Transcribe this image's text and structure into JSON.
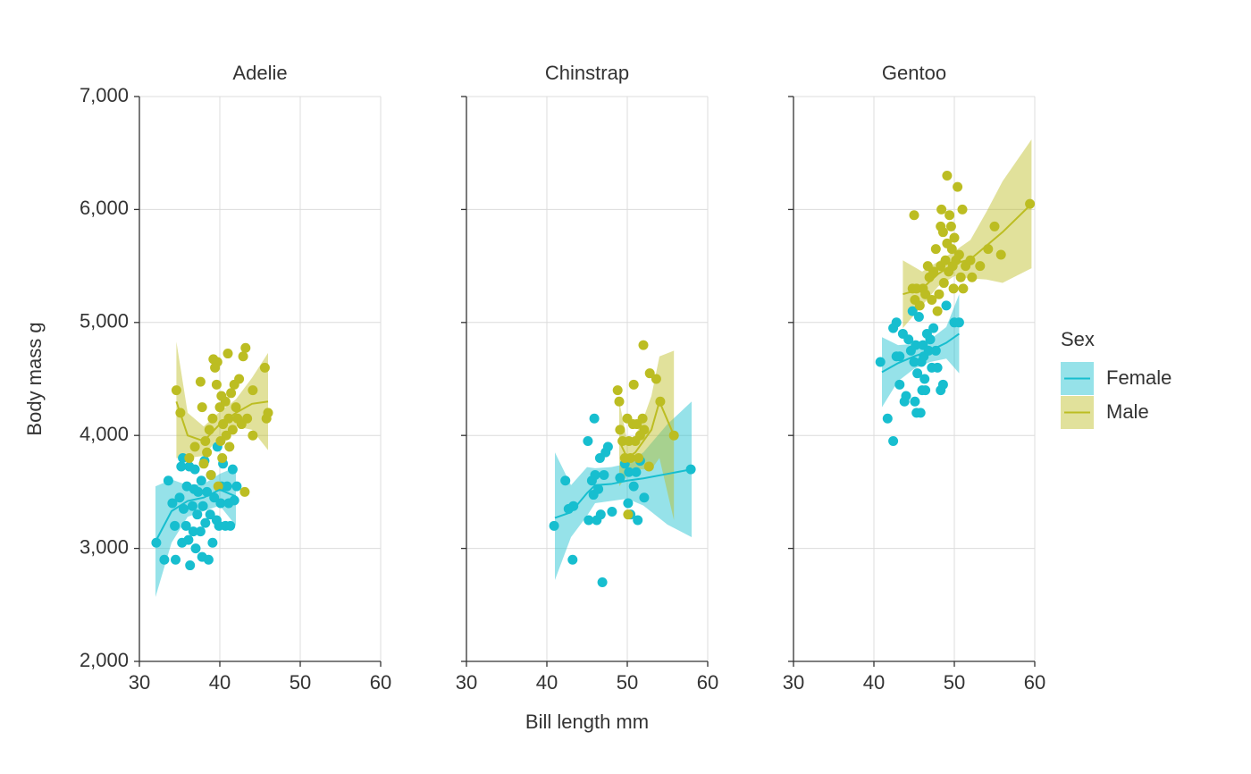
{
  "chart_data": [
    {
      "type": "scatter",
      "title": "Adelie",
      "xlim": [
        30,
        60
      ],
      "xticks": [
        30,
        40,
        50,
        60
      ],
      "ylim": [
        2000,
        7000
      ],
      "yticks": [
        {
          "value": 2000,
          "label": "2,000"
        },
        {
          "value": 3000,
          "label": "3,000"
        },
        {
          "value": 4000,
          "label": "4,000"
        },
        {
          "value": 5000,
          "label": "5,000"
        },
        {
          "value": 6000,
          "label": "6,000"
        },
        {
          "value": 7000,
          "label": "7,000"
        }
      ],
      "grid": true,
      "series": [
        {
          "name": "Female",
          "color": "#17becf",
          "x": [
            32.1,
            33.1,
            33.6,
            34.1,
            34.4,
            34.5,
            35,
            35.2,
            35.3,
            35.4,
            35.5,
            35.8,
            35.9,
            36.1,
            36.2,
            36.3,
            36.6,
            36.7,
            36.8,
            36.9,
            37,
            37.2,
            37.3,
            37.6,
            37.7,
            37.8,
            37.9,
            38.1,
            38.2,
            38.4,
            38.6,
            38.8,
            38.9,
            39.1,
            39.3,
            39.6,
            39.7,
            39.9,
            40.1,
            40.2,
            40.4,
            40.7,
            40.9,
            41.1,
            41.3,
            41.6,
            41.8,
            42.1
          ],
          "values": [
            3050,
            2900,
            3600,
            3400,
            3200,
            2900,
            3450,
            3725,
            3050,
            3800,
            3350,
            3200,
            3550,
            3075,
            3725,
            2850,
            3375,
            3150,
            3525,
            3700,
            3000,
            3300,
            3500,
            3150,
            3600,
            2925,
            3375,
            3775,
            3225,
            3500,
            2900,
            3300,
            3650,
            3050,
            3450,
            3250,
            3900,
            3200,
            3400,
            3550,
            3750,
            3200,
            3550,
            3400,
            3200,
            3700,
            3425,
            3550
          ],
          "fit": {
            "x": [
              32,
              34,
              36,
              38,
              40,
              42
            ],
            "values": [
              3060,
              3330,
              3420,
              3450,
              3520,
              3460
            ],
            "lower": [
              2570,
              3050,
              3280,
              3330,
              3380,
              3200
            ],
            "upper": [
              3550,
              3610,
              3560,
              3570,
              3660,
              3720
            ]
          }
        },
        {
          "name": "Male",
          "color": "#bcbd22",
          "x": [
            34.6,
            35.1,
            36.2,
            36.9,
            37.6,
            37.8,
            38,
            38.2,
            38.4,
            38.7,
            38.9,
            39.1,
            39.2,
            39.4,
            39.6,
            39.7,
            39.8,
            40,
            40.1,
            40.2,
            40.3,
            40.4,
            40.7,
            40.8,
            41,
            41.1,
            41.2,
            41.4,
            41.6,
            41.8,
            42,
            42.2,
            42.4,
            42.7,
            42.9,
            43.1,
            43.2,
            43.4,
            44.1,
            44.1,
            45.6,
            45.8,
            46
          ],
          "values": [
            4400,
            4200,
            3800,
            3900,
            4475,
            4250,
            3750,
            3950,
            3850,
            4050,
            3650,
            4150,
            4675,
            4600,
            4450,
            4650,
            3550,
            4250,
            3950,
            4350,
            3800,
            4100,
            4300,
            4000,
            4725,
            4150,
            3900,
            4375,
            4050,
            4450,
            4250,
            4150,
            4500,
            4100,
            4700,
            3500,
            4775,
            4150,
            4000,
            4400,
            4600,
            4150,
            4200
          ],
          "fit": {
            "x": [
              34.6,
              36,
              38,
              40,
              42,
              44,
              46
            ],
            "values": [
              4300,
              4000,
              3950,
              4100,
              4200,
              4280,
              4300
            ],
            "lower": [
              3800,
              3800,
              3820,
              3990,
              4080,
              4050,
              3870
            ],
            "upper": [
              4830,
              4200,
              4080,
              4210,
              4320,
              4510,
              4730
            ]
          }
        }
      ]
    },
    {
      "type": "scatter",
      "title": "Chinstrap",
      "xlim": [
        30,
        60
      ],
      "xticks": [
        30,
        40,
        50,
        60
      ],
      "ylim": [
        2000,
        7000
      ],
      "yticks": [
        2000,
        3000,
        4000,
        5000,
        6000,
        7000
      ],
      "grid": true,
      "series": [
        {
          "name": "Female",
          "color": "#17becf",
          "x": [
            40.9,
            42.3,
            43.2,
            43.3,
            42.7,
            45.1,
            45.2,
            45.6,
            45.8,
            45.9,
            46,
            46.2,
            46.4,
            46.6,
            46.7,
            46.9,
            47.1,
            47.3,
            47.6,
            48.1,
            49.1,
            49.7,
            50.1,
            50.2,
            50.4,
            50.8,
            51.1,
            51.3,
            51.6,
            52.1,
            57.9
          ],
          "values": [
            3200,
            3600,
            2900,
            3375,
            3350,
            3950,
            3250,
            3600,
            3475,
            4150,
            3650,
            3250,
            3525,
            3800,
            3300,
            2700,
            3650,
            3850,
            3900,
            3325,
            3625,
            3750,
            3400,
            3675,
            3300,
            3550,
            3675,
            3250,
            3775,
            3450,
            3700
          ],
          "fit": {
            "x": [
              41,
              43,
              45,
              46,
              48,
              50,
              52,
              55,
              58
            ],
            "values": [
              3270,
              3320,
              3490,
              3560,
              3570,
              3600,
              3620,
              3660,
              3700
            ],
            "lower": [
              2720,
              3100,
              3290,
              3400,
              3420,
              3440,
              3380,
              3210,
              3100
            ],
            "upper": [
              3850,
              3560,
              3720,
              3710,
              3720,
              3750,
              3850,
              4100,
              4300
            ]
          }
        },
        {
          "name": "Male",
          "color": "#bcbd22",
          "x": [
            48.8,
            49,
            49.1,
            49.4,
            49.7,
            50,
            50.1,
            50.2,
            50.4,
            50.7,
            50.8,
            51,
            51.2,
            51.4,
            51.6,
            51.9,
            52,
            52.1,
            52.7,
            52.8,
            53.6,
            54.1,
            55.8
          ],
          "values": [
            4400,
            4300,
            4050,
            3950,
            3800,
            4150,
            3300,
            3950,
            3800,
            4100,
            4450,
            3950,
            4100,
            3800,
            4000,
            4150,
            4800,
            4050,
            3725,
            4550,
            4500,
            4300,
            4000
          ],
          "fit": {
            "x": [
              49,
              50,
              51,
              52,
              53,
              54,
              55.8
            ],
            "values": [
              3950,
              3800,
              3850,
              3950,
              4050,
              4300,
              4000
            ],
            "lower": [
              3550,
              3650,
              3700,
              3700,
              3700,
              3800,
              3250
            ],
            "upper": [
              4300,
              3950,
              4000,
              4150,
              4350,
              4700,
              4750
            ]
          }
        }
      ]
    },
    {
      "type": "scatter",
      "title": "Gentoo",
      "xlim": [
        30,
        60
      ],
      "xticks": [
        30,
        40,
        50,
        60
      ],
      "ylim": [
        2000,
        7000
      ],
      "yticks": [
        2000,
        3000,
        4000,
        5000,
        6000,
        7000
      ],
      "grid": true,
      "series": [
        {
          "name": "Female",
          "color": "#17becf",
          "x": [
            40.8,
            41.7,
            42.4,
            42.4,
            42.8,
            42.8,
            43.2,
            43.2,
            43.6,
            43.8,
            44,
            44.3,
            44.6,
            44.8,
            45,
            45.1,
            45.2,
            45.3,
            45.4,
            45.6,
            45.8,
            45.9,
            46,
            46.1,
            46.2,
            46.3,
            46.4,
            46.6,
            46.8,
            47,
            47.2,
            47.4,
            47.7,
            47.9,
            48.3,
            48.6,
            49,
            50,
            50.6
          ],
          "values": [
            4650,
            4150,
            3950,
            4950,
            5000,
            4700,
            4450,
            4700,
            4900,
            4300,
            4350,
            4850,
            4750,
            5100,
            4650,
            4300,
            4800,
            4200,
            4550,
            5050,
            4200,
            4650,
            4400,
            4800,
            4700,
            4500,
            4400,
            4900,
            4750,
            4850,
            4600,
            4950,
            4750,
            4600,
            4400,
            4450,
            5150,
            5000,
            5000
          ],
          "fit": {
            "x": [
              41,
              43,
              45,
              47,
              49,
              50.6
            ],
            "values": [
              4560,
              4640,
              4700,
              4750,
              4820,
              4900
            ],
            "lower": [
              4250,
              4480,
              4590,
              4650,
              4680,
              4550
            ],
            "upper": [
              4870,
              4800,
              4810,
              4850,
              4960,
              5250
            ]
          }
        },
        {
          "name": "Male",
          "color": "#bcbd22",
          "x": [
            45,
            44.8,
            45.1,
            45.3,
            45.7,
            46.1,
            46.4,
            46.7,
            46.9,
            47.2,
            47.4,
            47.7,
            47.9,
            48.1,
            48.3,
            48.3,
            48.4,
            48.6,
            48.7,
            48.9,
            49.1,
            49.1,
            49.3,
            49.4,
            49.6,
            49.7,
            49.8,
            49.9,
            50,
            50.2,
            50.4,
            50.6,
            50.8,
            51,
            51.1,
            51.4,
            52,
            52.2,
            53.2,
            54.2,
            55,
            55.8,
            59.4
          ],
          "values": [
            5950,
            5300,
            5200,
            5300,
            5150,
            5300,
            5250,
            5500,
            5400,
            5200,
            5450,
            5650,
            5100,
            5250,
            5850,
            5500,
            6000,
            5800,
            5350,
            5550,
            6300,
            5700,
            5450,
            5950,
            5850,
            5650,
            5500,
            5300,
            5750,
            5550,
            6200,
            5600,
            5400,
            6000,
            5300,
            5500,
            5550,
            5400,
            5500,
            5650,
            5850,
            5600,
            6050
          ],
          "fit": {
            "x": [
              43.6,
              46,
              48,
              50,
              52,
              54,
              56,
              59.6
            ],
            "values": [
              5250,
              5300,
              5430,
              5520,
              5560,
              5680,
              5800,
              6050
            ],
            "lower": [
              4950,
              5150,
              5320,
              5410,
              5390,
              5380,
              5350,
              5480
            ],
            "upper": [
              5550,
              5450,
              5540,
              5630,
              5730,
              5980,
              6250,
              6620
            ]
          }
        }
      ]
    }
  ],
  "x_label": "Bill length mm",
  "y_label": "Body mass g",
  "legend_title": "Sex"
}
